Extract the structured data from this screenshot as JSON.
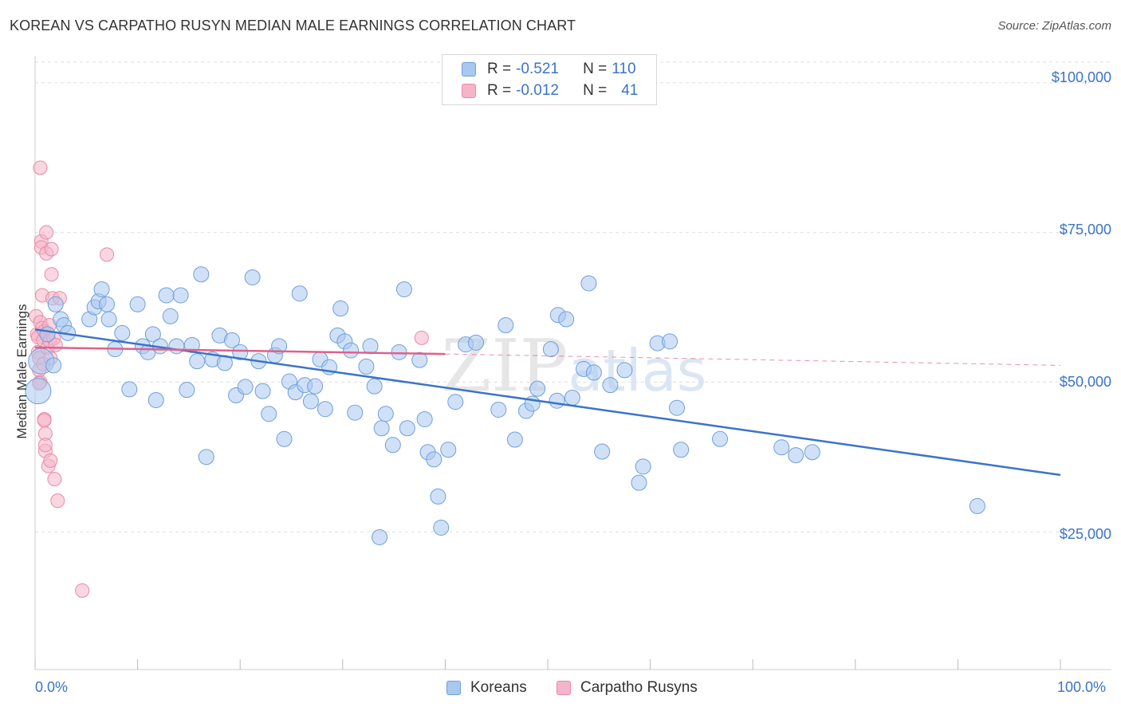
{
  "title": "KOREAN VS CARPATHO RUSYN MEDIAN MALE EARNINGS CORRELATION CHART",
  "source": "Source: ZipAtlas.com",
  "watermark": "ZIPatlas",
  "legend": {
    "rows": [
      {
        "r_label": "R =",
        "r_value": "-0.521",
        "n_label": "N =",
        "n_value": "110",
        "color": "#a9c8f0"
      },
      {
        "r_label": "R =",
        "r_value": "-0.012",
        "n_label": "N =",
        "n_value": "41",
        "color": "#f5b5c8"
      }
    ]
  },
  "chart_data": {
    "type": "scatter",
    "title": "KOREAN VS CARPATHO RUSYN MEDIAN MALE EARNINGS CORRELATION CHART",
    "xlabel": "",
    "ylabel": "Median Male Earnings",
    "x_tick_labels": [
      "0.0%",
      "100.0%"
    ],
    "y_tick_labels": [
      "$100,000",
      "$75,000",
      "$50,000",
      "$25,000"
    ],
    "y_ticks": [
      100000,
      75000,
      50000,
      25000
    ],
    "xlim": [
      0,
      100
    ],
    "ylim": [
      2000,
      104500
    ],
    "grid": true,
    "series": [
      {
        "name": "Koreans",
        "color": "#3a74c9",
        "fill": "#a9c8f0",
        "trend": {
          "x0": 0,
          "y0": 58800,
          "x1": 100,
          "y1": 34500
        },
        "points": [
          [
            0.3,
            48500
          ],
          [
            0.6,
            53500
          ],
          [
            1.2,
            58000
          ],
          [
            1.8,
            52800
          ],
          [
            2.0,
            63000
          ],
          [
            2.5,
            60500
          ],
          [
            2.8,
            59500
          ],
          [
            3.2,
            58200
          ],
          [
            5.3,
            60500
          ],
          [
            5.8,
            62500
          ],
          [
            6.2,
            63500
          ],
          [
            6.5,
            65500
          ],
          [
            7.0,
            63000
          ],
          [
            7.2,
            60500
          ],
          [
            7.8,
            55500
          ],
          [
            8.5,
            58200
          ],
          [
            9.2,
            48800
          ],
          [
            10.0,
            63000
          ],
          [
            10.5,
            56000
          ],
          [
            11.0,
            55000
          ],
          [
            11.5,
            58000
          ],
          [
            11.8,
            47000
          ],
          [
            12.2,
            56000
          ],
          [
            12.8,
            64500
          ],
          [
            13.2,
            61000
          ],
          [
            13.8,
            56000
          ],
          [
            14.2,
            64500
          ],
          [
            14.8,
            48700
          ],
          [
            15.3,
            56200
          ],
          [
            15.8,
            53500
          ],
          [
            16.2,
            68000
          ],
          [
            16.7,
            37500
          ],
          [
            17.3,
            53800
          ],
          [
            18.0,
            57800
          ],
          [
            18.5,
            53200
          ],
          [
            19.2,
            57000
          ],
          [
            19.6,
            47800
          ],
          [
            20.0,
            55000
          ],
          [
            20.5,
            49200
          ],
          [
            21.2,
            67500
          ],
          [
            21.8,
            53500
          ],
          [
            22.2,
            48500
          ],
          [
            22.8,
            44700
          ],
          [
            23.4,
            54500
          ],
          [
            23.8,
            56000
          ],
          [
            24.3,
            40500
          ],
          [
            24.8,
            50100
          ],
          [
            25.4,
            48300
          ],
          [
            25.8,
            64800
          ],
          [
            26.3,
            49500
          ],
          [
            26.9,
            46800
          ],
          [
            27.3,
            49300
          ],
          [
            27.8,
            53800
          ],
          [
            28.3,
            45500
          ],
          [
            28.7,
            52500
          ],
          [
            29.5,
            57800
          ],
          [
            29.8,
            62300
          ],
          [
            30.2,
            56800
          ],
          [
            30.8,
            55300
          ],
          [
            31.2,
            44900
          ],
          [
            32.3,
            52600
          ],
          [
            32.7,
            56000
          ],
          [
            33.1,
            49300
          ],
          [
            33.8,
            42300
          ],
          [
            34.2,
            44700
          ],
          [
            34.9,
            39500
          ],
          [
            35.5,
            55000
          ],
          [
            36.0,
            65500
          ],
          [
            36.3,
            42300
          ],
          [
            37.5,
            53700
          ],
          [
            38.0,
            43800
          ],
          [
            38.3,
            38300
          ],
          [
            38.9,
            37100
          ],
          [
            39.3,
            30900
          ],
          [
            39.6,
            25700
          ],
          [
            40.3,
            38700
          ],
          [
            41.0,
            46700
          ],
          [
            42.0,
            56300
          ],
          [
            43.0,
            56600
          ],
          [
            45.2,
            45400
          ],
          [
            45.9,
            59500
          ],
          [
            46.8,
            40400
          ],
          [
            47.9,
            45200
          ],
          [
            48.5,
            46400
          ],
          [
            49.0,
            48900
          ],
          [
            50.3,
            55500
          ],
          [
            50.9,
            46900
          ],
          [
            51.0,
            61200
          ],
          [
            51.8,
            60500
          ],
          [
            52.4,
            47400
          ],
          [
            53.5,
            52200
          ],
          [
            54.0,
            66500
          ],
          [
            54.5,
            51600
          ],
          [
            55.3,
            38400
          ],
          [
            56.1,
            49500
          ],
          [
            57.5,
            52000
          ],
          [
            58.9,
            33200
          ],
          [
            59.3,
            35900
          ],
          [
            60.7,
            56500
          ],
          [
            61.9,
            56800
          ],
          [
            62.6,
            45700
          ],
          [
            63.0,
            38700
          ],
          [
            66.8,
            40500
          ],
          [
            72.8,
            39100
          ],
          [
            74.2,
            37800
          ],
          [
            75.8,
            38300
          ],
          [
            91.9,
            29300
          ],
          [
            33.6,
            24100
          ]
        ],
        "point_sizes_note": "two points at x≈0.3 and x≈1.2 are drawn larger"
      },
      {
        "name": "Carpatho Rusyns",
        "color": "#e0608a",
        "fill": "#f5b5c8",
        "trend": {
          "x0": 0,
          "y0": 55800,
          "x1": 40,
          "y1": 54700,
          "dash_to": 100,
          "dash_y": 52800
        },
        "points": [
          [
            0.1,
            61000
          ],
          [
            0.2,
            58000
          ],
          [
            0.3,
            57500
          ],
          [
            0.3,
            55000
          ],
          [
            0.4,
            54000
          ],
          [
            0.4,
            52000
          ],
          [
            0.5,
            60000
          ],
          [
            0.5,
            50000
          ],
          [
            0.5,
            85800
          ],
          [
            0.6,
            73500
          ],
          [
            0.6,
            72500
          ],
          [
            0.7,
            64500
          ],
          [
            0.7,
            59000
          ],
          [
            0.8,
            57000
          ],
          [
            0.8,
            53000
          ],
          [
            0.9,
            58500
          ],
          [
            0.9,
            43800
          ],
          [
            1.0,
            41400
          ],
          [
            1.0,
            38500
          ],
          [
            1.0,
            39500
          ],
          [
            1.1,
            71500
          ],
          [
            1.1,
            75000
          ],
          [
            1.2,
            55700
          ],
          [
            1.3,
            36000
          ],
          [
            1.4,
            56900
          ],
          [
            1.4,
            59500
          ],
          [
            1.5,
            36900
          ],
          [
            1.5,
            54000
          ],
          [
            1.6,
            68000
          ],
          [
            1.6,
            72200
          ],
          [
            1.7,
            64000
          ],
          [
            1.8,
            57300
          ],
          [
            1.9,
            33800
          ],
          [
            2.0,
            56200
          ],
          [
            2.2,
            30200
          ],
          [
            2.4,
            64000
          ],
          [
            4.6,
            15200
          ],
          [
            7.0,
            71300
          ],
          [
            37.7,
            57400
          ],
          [
            0.9,
            43600
          ],
          [
            0.4,
            49800
          ]
        ]
      }
    ]
  },
  "x_axis": {
    "left_label": "0.0%",
    "right_label": "100.0%"
  },
  "bottom_legend": [
    {
      "label": "Koreans",
      "color": "#a9c8f0"
    },
    {
      "label": "Carpatho Rusyns",
      "color": "#f5b5c8"
    }
  ]
}
